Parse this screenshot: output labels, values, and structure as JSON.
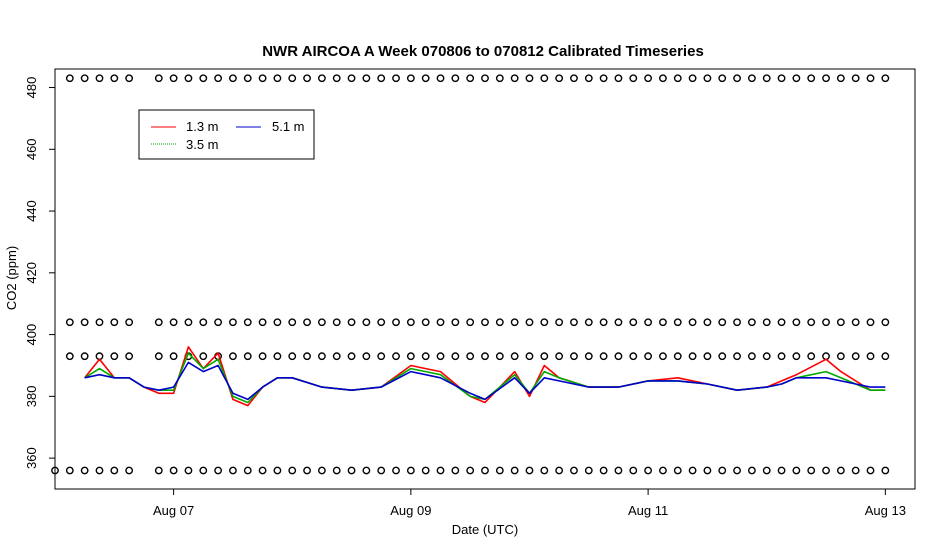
{
  "chart_data": {
    "type": "line",
    "title": "NWR AIRCOA A  Week 070806 to 070812  Calibrated Timeseries",
    "xlabel": "Date (UTC)",
    "ylabel": "CO2 (ppm)",
    "xlim": [
      "2007-08-06T00:00",
      "2007-08-13T06:00"
    ],
    "ylim": [
      350,
      486
    ],
    "x_ticks": [
      "Aug 07",
      "Aug 09",
      "Aug 11",
      "Aug 13"
    ],
    "x_tick_dates": [
      "2007-08-07",
      "2007-08-09",
      "2007-08-11",
      "2007-08-13"
    ],
    "y_ticks": [
      360,
      380,
      400,
      420,
      440,
      460,
      480
    ],
    "grid": false,
    "legend": {
      "position": "top-left",
      "entries": [
        {
          "label": "1.3 m",
          "color": "#ff0000"
        },
        {
          "label": "5.1 m",
          "color": "#0000cc"
        },
        {
          "label": "3.5 m",
          "color": "#00aa00"
        }
      ]
    },
    "series": [
      {
        "name": "1.3 m",
        "color": "#ff0000",
        "x": [
          "2007-08-06T06:00",
          "2007-08-06T09:00",
          "2007-08-06T12:00",
          "2007-08-06T15:00",
          "2007-08-06T18:00",
          "2007-08-06T21:00",
          "2007-08-07T00:00",
          "2007-08-07T03:00",
          "2007-08-07T06:00",
          "2007-08-07T09:00",
          "2007-08-07T12:00",
          "2007-08-07T15:00",
          "2007-08-07T18:00",
          "2007-08-07T21:00",
          "2007-08-08T00:00",
          "2007-08-08T06:00",
          "2007-08-08T12:00",
          "2007-08-08T18:00",
          "2007-08-09T00:00",
          "2007-08-09T03:00",
          "2007-08-09T06:00",
          "2007-08-09T12:00",
          "2007-08-09T15:00",
          "2007-08-09T21:00",
          "2007-08-10T00:00",
          "2007-08-10T03:00",
          "2007-08-10T06:00",
          "2007-08-10T12:00",
          "2007-08-10T18:00",
          "2007-08-11T00:00",
          "2007-08-11T06:00",
          "2007-08-11T12:00",
          "2007-08-11T18:00",
          "2007-08-12T00:00",
          "2007-08-12T03:00",
          "2007-08-12T06:00",
          "2007-08-12T12:00",
          "2007-08-12T15:00",
          "2007-08-12T21:00",
          "2007-08-13T00:00"
        ],
        "values": [
          386,
          392,
          386,
          386,
          383,
          381,
          381,
          396,
          389,
          394,
          379,
          377,
          383,
          386,
          386,
          383,
          382,
          383,
          390,
          389,
          388,
          380,
          378,
          388,
          380,
          390,
          386,
          383,
          383,
          385,
          386,
          384,
          382,
          383,
          385,
          387,
          392,
          388,
          382,
          382
        ]
      },
      {
        "name": "3.5 m",
        "color": "#00aa00",
        "x": [
          "2007-08-06T06:00",
          "2007-08-06T09:00",
          "2007-08-06T12:00",
          "2007-08-06T15:00",
          "2007-08-06T18:00",
          "2007-08-06T21:00",
          "2007-08-07T00:00",
          "2007-08-07T03:00",
          "2007-08-07T06:00",
          "2007-08-07T09:00",
          "2007-08-07T12:00",
          "2007-08-07T15:00",
          "2007-08-07T18:00",
          "2007-08-07T21:00",
          "2007-08-08T00:00",
          "2007-08-08T06:00",
          "2007-08-08T12:00",
          "2007-08-08T18:00",
          "2007-08-09T00:00",
          "2007-08-09T03:00",
          "2007-08-09T06:00",
          "2007-08-09T12:00",
          "2007-08-09T15:00",
          "2007-08-09T21:00",
          "2007-08-10T00:00",
          "2007-08-10T03:00",
          "2007-08-10T06:00",
          "2007-08-10T12:00",
          "2007-08-10T18:00",
          "2007-08-11T00:00",
          "2007-08-11T06:00",
          "2007-08-11T12:00",
          "2007-08-11T18:00",
          "2007-08-12T00:00",
          "2007-08-12T03:00",
          "2007-08-12T06:00",
          "2007-08-12T12:00",
          "2007-08-12T15:00",
          "2007-08-12T21:00",
          "2007-08-13T00:00"
        ],
        "values": [
          386,
          389,
          386,
          386,
          383,
          382,
          382,
          394,
          389,
          392,
          380,
          378,
          383,
          386,
          386,
          383,
          382,
          383,
          389,
          388,
          387,
          380,
          379,
          387,
          381,
          388,
          386,
          383,
          383,
          385,
          385,
          384,
          382,
          383,
          384,
          386,
          388,
          386,
          382,
          382
        ]
      },
      {
        "name": "5.1 m",
        "color": "#0000cc",
        "x": [
          "2007-08-06T06:00",
          "2007-08-06T09:00",
          "2007-08-06T12:00",
          "2007-08-06T15:00",
          "2007-08-06T18:00",
          "2007-08-06T21:00",
          "2007-08-07T00:00",
          "2007-08-07T03:00",
          "2007-08-07T06:00",
          "2007-08-07T09:00",
          "2007-08-07T12:00",
          "2007-08-07T15:00",
          "2007-08-07T18:00",
          "2007-08-07T21:00",
          "2007-08-08T00:00",
          "2007-08-08T06:00",
          "2007-08-08T12:00",
          "2007-08-08T18:00",
          "2007-08-09T00:00",
          "2007-08-09T03:00",
          "2007-08-09T06:00",
          "2007-08-09T12:00",
          "2007-08-09T15:00",
          "2007-08-09T21:00",
          "2007-08-10T00:00",
          "2007-08-10T03:00",
          "2007-08-10T06:00",
          "2007-08-10T12:00",
          "2007-08-10T18:00",
          "2007-08-11T00:00",
          "2007-08-11T06:00",
          "2007-08-11T12:00",
          "2007-08-11T18:00",
          "2007-08-12T00:00",
          "2007-08-12T03:00",
          "2007-08-12T06:00",
          "2007-08-12T12:00",
          "2007-08-12T15:00",
          "2007-08-12T21:00",
          "2007-08-13T00:00"
        ],
        "values": [
          386,
          387,
          386,
          386,
          383,
          382,
          383,
          391,
          388,
          390,
          381,
          379,
          383,
          386,
          386,
          383,
          382,
          383,
          388,
          387,
          386,
          381,
          379,
          386,
          381,
          386,
          385,
          383,
          383,
          385,
          385,
          384,
          382,
          383,
          384,
          386,
          386,
          385,
          383,
          383
        ]
      }
    ],
    "marker_rows": [
      {
        "y": 483,
        "x_start": "2007-08-06T03:00",
        "x_end": "2007-08-13T00:00",
        "step_hours": 3,
        "gaps": [
          [
            "2007-08-06T15:30",
            "2007-08-06T21:00"
          ]
        ]
      },
      {
        "y": 404,
        "x_start": "2007-08-06T03:00",
        "x_end": "2007-08-13T00:00",
        "step_hours": 3,
        "gaps": [
          [
            "2007-08-06T15:30",
            "2007-08-06T21:00"
          ]
        ]
      },
      {
        "y": 393,
        "x_start": "2007-08-06T03:00",
        "x_end": "2007-08-13T00:00",
        "step_hours": 3,
        "gaps": [
          [
            "2007-08-06T15:30",
            "2007-08-06T21:00"
          ]
        ]
      },
      {
        "y": 356,
        "x_start": "2007-08-06T00:00",
        "x_end": "2007-08-13T00:00",
        "step_hours": 3,
        "gaps": [
          [
            "2007-08-06T15:30",
            "2007-08-06T21:00"
          ]
        ]
      }
    ]
  }
}
